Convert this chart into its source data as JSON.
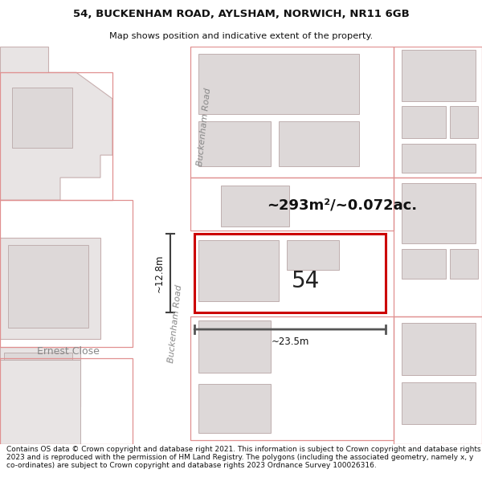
{
  "title_line1": "54, BUCKENHAM ROAD, AYLSHAM, NORWICH, NR11 6GB",
  "title_line2": "Map shows position and indicative extent of the property.",
  "footer_text": "Contains OS data © Crown copyright and database right 2021. This information is subject to Crown copyright and database rights 2023 and is reproduced with the permission of HM Land Registry. The polygons (including the associated geometry, namely x, y co-ordinates) are subject to Crown copyright and database rights 2023 Ordnance Survey 100026316.",
  "area_label": "~293m²/~0.072ac.",
  "width_label": "~23.5m",
  "height_label": "~12.8m",
  "plot_number": "54",
  "road_label_top": "Buckenham Road",
  "road_label_bot": "Buckenham Road",
  "ernest_close": "Ernest Close",
  "map_bg": "#ffffff",
  "building_fill": "#e8e4e4",
  "building_edge": "#c8b0b0",
  "plot_border_color": "#e09090",
  "highlight_color": "#cc0000",
  "dim_color": "#404040",
  "title_fontsize": 9.5,
  "subtitle_fontsize": 8.2,
  "footer_fontsize": 6.5,
  "plot_number_fontsize": 20,
  "area_label_fontsize": 13,
  "dim_label_fontsize": 8.5,
  "road_label_fontsize": 8
}
